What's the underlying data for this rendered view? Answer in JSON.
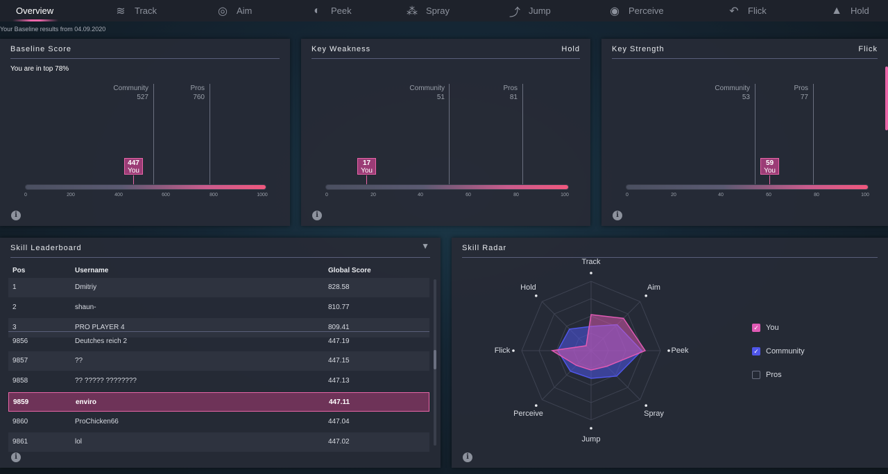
{
  "nav": {
    "tabs": [
      {
        "label": "Overview",
        "icon": "overview"
      },
      {
        "label": "Track",
        "icon": "track-icon"
      },
      {
        "label": "Aim",
        "icon": "aim-icon"
      },
      {
        "label": "Peek",
        "icon": "peek-icon"
      },
      {
        "label": "Spray",
        "icon": "spray-icon"
      },
      {
        "label": "Jump",
        "icon": "jump-icon"
      },
      {
        "label": "Perceive",
        "icon": "perceive-icon"
      },
      {
        "label": "Flick",
        "icon": "flick-icon"
      },
      {
        "label": "Hold",
        "icon": "hold-icon"
      }
    ],
    "active": "Overview"
  },
  "baseline_note": "Your Baseline results from 04.09.2020",
  "baseline_score": {
    "title": "Baseline Score",
    "top_text": "You are in top 78%",
    "community_label": "Community",
    "community_value": "527",
    "pros_label": "Pros",
    "pros_value": "760",
    "you_value": "447",
    "you_label": "You",
    "ticks": [
      "0",
      "200",
      "400",
      "600",
      "800",
      "1000"
    ],
    "max": 1000
  },
  "key_weakness": {
    "title": "Key Weakness",
    "skill": "Hold",
    "community_label": "Community",
    "community_value": "51",
    "pros_label": "Pros",
    "pros_value": "81",
    "you_value": "17",
    "you_label": "You",
    "ticks": [
      "0",
      "20",
      "40",
      "60",
      "80",
      "100"
    ],
    "max": 100
  },
  "key_strength": {
    "title": "Key Strength",
    "skill": "Flick",
    "community_label": "Community",
    "community_value": "53",
    "pros_label": "Pros",
    "pros_value": "77",
    "you_value": "59",
    "you_label": "You",
    "ticks": [
      "0",
      "20",
      "40",
      "60",
      "80",
      "100"
    ],
    "max": 100
  },
  "leaderboard": {
    "title": "Skill Leaderboard",
    "columns": {
      "pos": "Pos",
      "username": "Username",
      "score": "Global Score"
    },
    "top_rows": [
      {
        "pos": "1",
        "username": "Dmitriy",
        "score": "828.58"
      },
      {
        "pos": "2",
        "username": "shaun-",
        "score": "810.77"
      },
      {
        "pos": "3",
        "username": "PRO PLAYER 4",
        "score": "809.41"
      }
    ],
    "near_rows": [
      {
        "pos": "9856",
        "username": "Deutches reich 2",
        "score": "447.19"
      },
      {
        "pos": "9857",
        "username": "??",
        "score": "447.15"
      },
      {
        "pos": "9858",
        "username": "?? ????? ????????",
        "score": "447.13"
      },
      {
        "pos": "9859",
        "username": "enviro",
        "score": "447.11",
        "me": true
      },
      {
        "pos": "9860",
        "username": "ProChicken66",
        "score": "447.04"
      },
      {
        "pos": "9861",
        "username": "lol",
        "score": "447.02"
      }
    ]
  },
  "radar": {
    "title": "Skill Radar",
    "axes": [
      "Track",
      "Aim",
      "Peek",
      "Spray",
      "Jump",
      "Perceive",
      "Flick",
      "Hold"
    ],
    "series": [
      {
        "name": "You",
        "values": [
          0.52,
          0.66,
          0.78,
          0.32,
          0.28,
          0.3,
          0.56,
          0.1
        ],
        "color": "#e05ab4",
        "checked": true
      },
      {
        "name": "Community",
        "values": [
          0.35,
          0.53,
          0.73,
          0.52,
          0.4,
          0.42,
          0.48,
          0.44
        ],
        "color": "#4f56e8",
        "checked": true
      },
      {
        "name": "Pros",
        "values": [],
        "color": "#8d929d",
        "checked": false
      }
    ]
  },
  "colors": {
    "accent": "#ea66a8",
    "community": "#4f56e8"
  }
}
